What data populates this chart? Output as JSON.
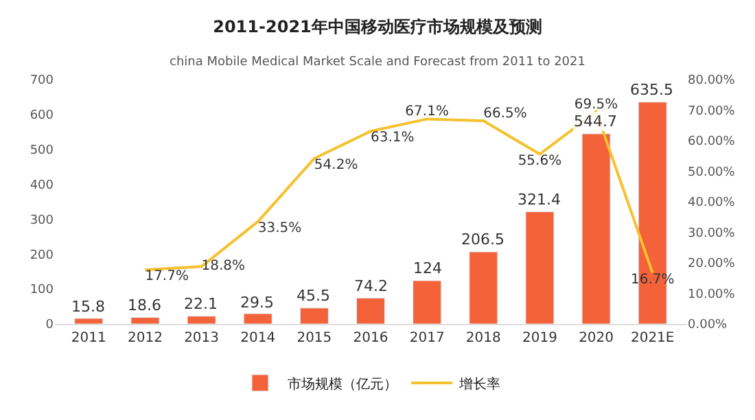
{
  "chart_data": {
    "type": "bar",
    "title": "2011-2021年中国移动医疗市场规模及预测",
    "subtitle": "china Mobile Medical Market Scale and Forecast from 2011 to 2021",
    "categories": [
      "2011",
      "2012",
      "2013",
      "2014",
      "2015",
      "2016",
      "2017",
      "2018",
      "2019",
      "2020",
      "2021E"
    ],
    "series": [
      {
        "name": "市场规模（亿元）",
        "color": "#f4623a",
        "values": [
          15.8,
          18.6,
          22.1,
          29.5,
          45.5,
          74.2,
          124,
          206.5,
          321.4,
          544.7,
          635.5
        ],
        "data_labels": true
      },
      {
        "name": "增长率",
        "type": "line",
        "axis": "y2",
        "color": "#f5c12e",
        "values": [
          null,
          17.7,
          18.8,
          33.5,
          54.2,
          63.1,
          67.1,
          66.5,
          55.6,
          69.5,
          16.7
        ],
        "value_labels": [
          null,
          "17.7%",
          "18.8%",
          "33.5%",
          "54.2%",
          "63.1%",
          "67.1%",
          "66.5%",
          "55.6%",
          "69.5%",
          "16.7%"
        ]
      }
    ],
    "ylim": [
      0,
      700
    ],
    "yticks": [
      0,
      100,
      200,
      300,
      400,
      500,
      600,
      700
    ],
    "y2lim": [
      0,
      80
    ],
    "y2ticks": [
      {
        "value": 0,
        "label": "0.00%"
      },
      {
        "value": 10,
        "label": "10.00%"
      },
      {
        "value": 20,
        "label": "20.00%"
      },
      {
        "value": 30,
        "label": "30.00%"
      },
      {
        "value": 40,
        "label": "40.00%"
      },
      {
        "value": 50,
        "label": "50.00%"
      },
      {
        "value": 60,
        "label": "60.00%"
      },
      {
        "value": 70,
        "label": "70.00%"
      },
      {
        "value": 80,
        "label": "80.00%"
      }
    ],
    "legend": "bottom",
    "marker": "none"
  }
}
